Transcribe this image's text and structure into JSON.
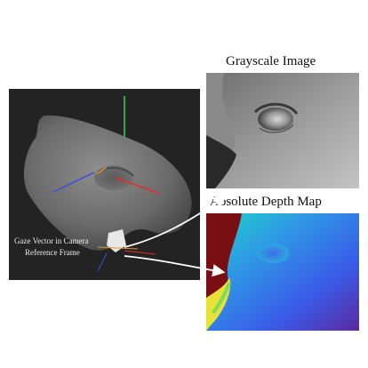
{
  "figure": {
    "gray_title": "Grayscale Image",
    "depth_title": "Absolute Depth Map",
    "gaze_label_line1": "Gaze Vector in Camera",
    "gaze_label_line2": "Reference Frame"
  },
  "colors": {
    "render_background": "#232323",
    "depth_far": "#7a0f13",
    "depth_near": "#1fd6c8",
    "depth_mid": "#3a5ae8",
    "depth_deep": "#5b2a9e",
    "axis_green": "#2fa84a",
    "axis_red": "#e0302a",
    "axis_blue": "#3a4de0",
    "gaze_orange": "#e3962b"
  }
}
